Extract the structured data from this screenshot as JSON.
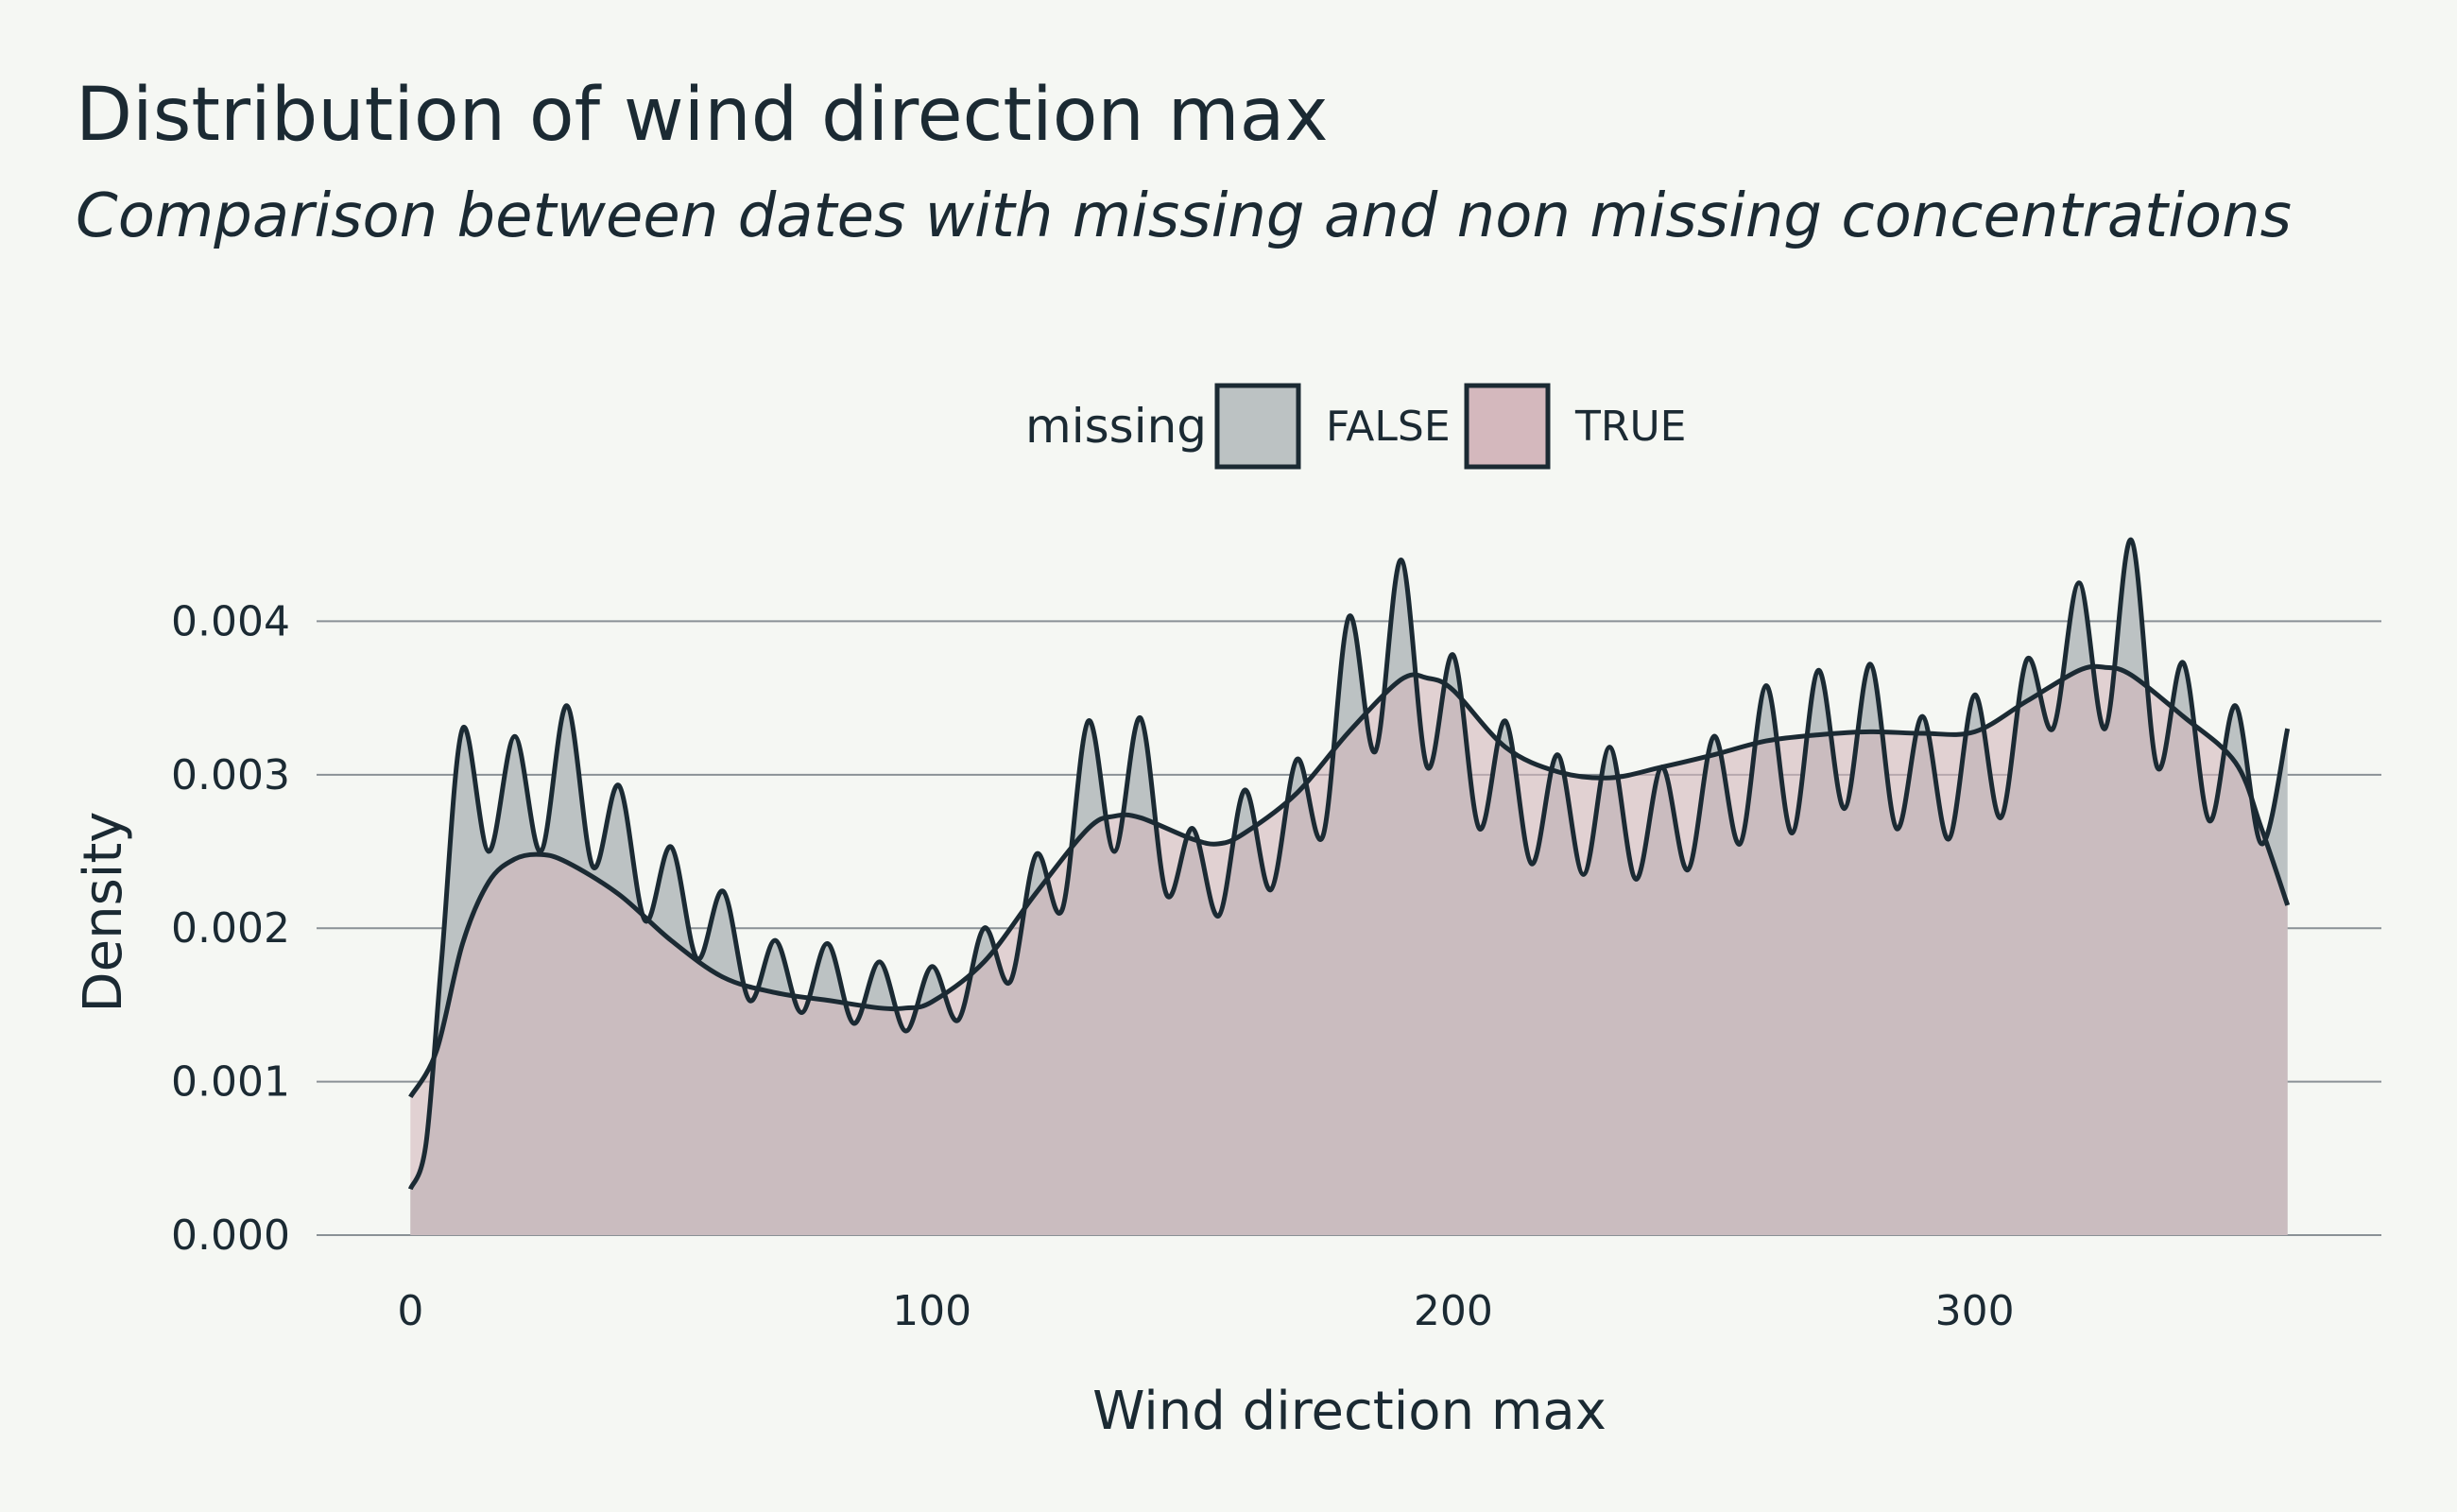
{
  "chart_data": {
    "type": "area",
    "title": "Distribution of wind direction max",
    "subtitle": "Comparison between dates with missing and non missing concentrations",
    "xlabel": "Wind direction max",
    "ylabel": "Density",
    "xlim": [
      -18,
      378
    ],
    "ylim": [
      0,
      0.0046
    ],
    "x_ticks": [
      0,
      100,
      200,
      300
    ],
    "x_tick_labels": [
      "0",
      "100",
      "200",
      "300"
    ],
    "y_ticks": [
      0,
      0.001,
      0.002,
      0.003,
      0.004
    ],
    "y_tick_labels": [
      "0.000",
      "0.001",
      "0.002",
      "0.003",
      "0.004"
    ],
    "grid": true,
    "legend_title": "missing",
    "legend_position": "top",
    "series": [
      {
        "name": "FALSE",
        "fill": "#bcc2c3",
        "x": [
          0,
          3,
          6,
          10,
          15,
          20,
          25,
          30,
          35,
          40,
          45,
          50,
          55,
          60,
          65,
          70,
          75,
          80,
          85,
          90,
          95,
          100,
          105,
          110,
          115,
          120,
          125,
          130,
          135,
          140,
          145,
          150,
          155,
          160,
          165,
          170,
          175,
          180,
          185,
          190,
          195,
          200,
          205,
          210,
          215,
          220,
          225,
          230,
          235,
          240,
          245,
          250,
          255,
          260,
          265,
          270,
          275,
          280,
          285,
          290,
          295,
          300,
          305,
          310,
          315,
          320,
          325,
          330,
          335,
          340,
          345,
          350,
          355,
          360
        ],
        "y": [
          0.0003,
          0.0006,
          0.0018,
          0.0033,
          0.0025,
          0.00325,
          0.0025,
          0.00345,
          0.0024,
          0.00293,
          0.00205,
          0.00253,
          0.0018,
          0.00224,
          0.00153,
          0.00192,
          0.00145,
          0.0019,
          0.00138,
          0.00178,
          0.00133,
          0.00175,
          0.0014,
          0.002,
          0.00165,
          0.00248,
          0.00212,
          0.00335,
          0.0025,
          0.00337,
          0.00222,
          0.00265,
          0.00208,
          0.0029,
          0.00225,
          0.0031,
          0.0026,
          0.00403,
          0.00315,
          0.0044,
          0.00305,
          0.00378,
          0.00265,
          0.00335,
          0.00242,
          0.00313,
          0.00235,
          0.00318,
          0.00232,
          0.00305,
          0.00238,
          0.00325,
          0.00255,
          0.00358,
          0.00262,
          0.00368,
          0.00278,
          0.00372,
          0.00265,
          0.00338,
          0.00258,
          0.00352,
          0.00272,
          0.00375,
          0.0033,
          0.00425,
          0.0033,
          0.00453,
          0.00305,
          0.00373,
          0.0027,
          0.00345,
          0.00255,
          0.0033
        ]
      },
      {
        "name": "TRUE",
        "fill": "#d4b8bd",
        "x": [
          0,
          5,
          10,
          15,
          20,
          25,
          30,
          40,
          50,
          60,
          70,
          80,
          90,
          95,
          100,
          110,
          120,
          130,
          135,
          140,
          150,
          155,
          160,
          170,
          180,
          190,
          195,
          200,
          210,
          220,
          230,
          240,
          250,
          260,
          270,
          280,
          290,
          300,
          310,
          320,
          325,
          330,
          340,
          350,
          355,
          360
        ],
        "y": [
          0.0009,
          0.0012,
          0.0019,
          0.0023,
          0.00245,
          0.00248,
          0.00243,
          0.00222,
          0.00192,
          0.00168,
          0.00158,
          0.00153,
          0.00148,
          0.00148,
          0.00152,
          0.00178,
          0.00223,
          0.00265,
          0.00273,
          0.00272,
          0.00258,
          0.00255,
          0.00262,
          0.00288,
          0.00328,
          0.00362,
          0.00363,
          0.00355,
          0.00318,
          0.00302,
          0.00298,
          0.00305,
          0.00313,
          0.00322,
          0.00326,
          0.00328,
          0.00327,
          0.00328,
          0.00348,
          0.00368,
          0.0037,
          0.00365,
          0.00338,
          0.00308,
          0.00265,
          0.00215
        ]
      }
    ]
  }
}
